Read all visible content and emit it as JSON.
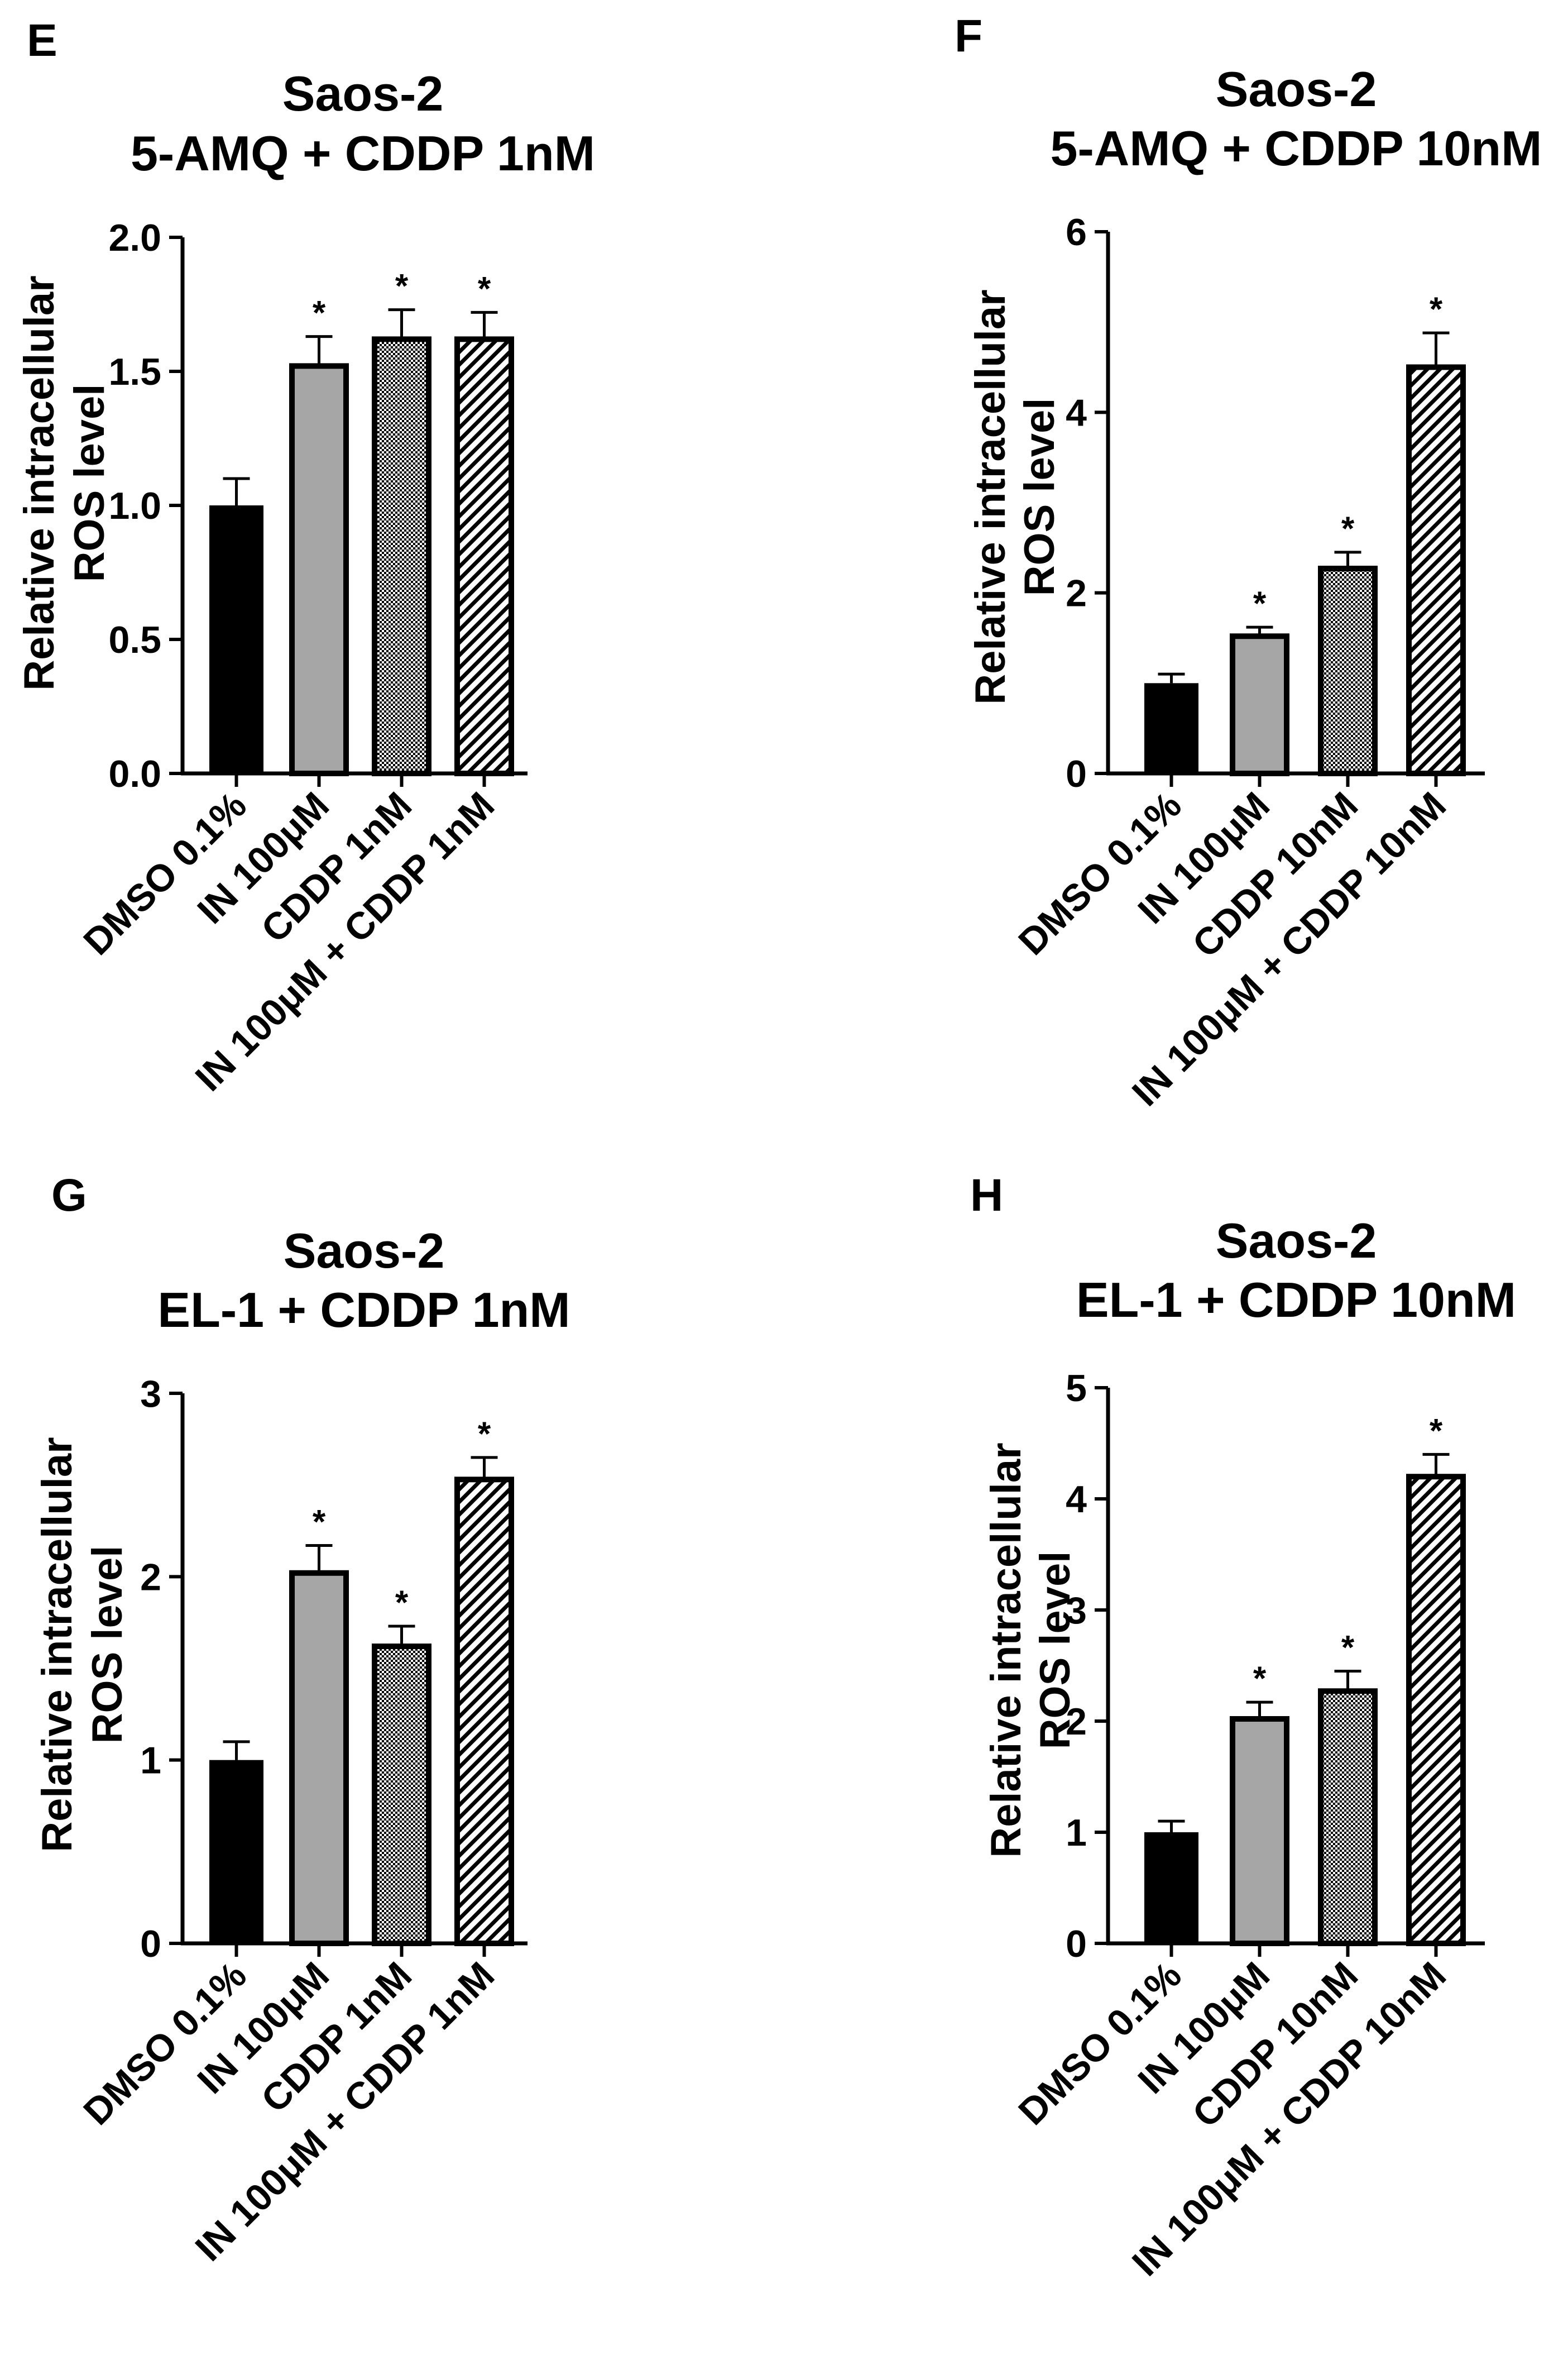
{
  "colors": {
    "dmso": "#000000",
    "in": "#a6a6a6",
    "axis": "#000000"
  },
  "chart_data": [
    {
      "panel": "E",
      "type": "bar",
      "title": [
        "Saos-2",
        "5-AMQ + CDDP 1nM"
      ],
      "ylabel": [
        "Relative intracellular",
        "ROS level"
      ],
      "xlabel": "",
      "ylim": [
        0,
        2.0
      ],
      "yticks": [
        0.0,
        0.5,
        1.0,
        1.5,
        2.0
      ],
      "ytick_labels": [
        "0.0",
        "0.5",
        "1.0",
        "1.5",
        "2.0"
      ],
      "categories": [
        "DMSO 0.1%",
        "IN 100μM",
        "CDDP 1nM",
        "IN 100μM + CDDP 1nM"
      ],
      "values": [
        1.0,
        1.52,
        1.62,
        1.62
      ],
      "errors": [
        0.1,
        0.11,
        0.11,
        0.1
      ],
      "significance": [
        "",
        "*",
        "*",
        "*"
      ],
      "fills": [
        "solid-black",
        "solid-gray",
        "checker",
        "diagonal"
      ]
    },
    {
      "panel": "F",
      "type": "bar",
      "title": [
        "Saos-2",
        "5-AMQ + CDDP 10nM"
      ],
      "ylabel": [
        "Relative intracellular",
        "ROS level"
      ],
      "xlabel": "",
      "ylim": [
        0,
        6
      ],
      "yticks": [
        0,
        2,
        4,
        6
      ],
      "ytick_labels": [
        "0",
        "2",
        "4",
        "6"
      ],
      "categories": [
        "DMSO 0.1%",
        "IN 100μM",
        "CDDP 10nM",
        "IN 100μM + CDDP 10nM"
      ],
      "values": [
        1.0,
        1.52,
        2.27,
        4.5
      ],
      "errors": [
        0.1,
        0.1,
        0.18,
        0.38
      ],
      "significance": [
        "",
        "*",
        "*",
        "*"
      ],
      "fills": [
        "solid-black",
        "solid-gray",
        "checker",
        "diagonal"
      ]
    },
    {
      "panel": "G",
      "type": "bar",
      "title": [
        "Saos-2",
        "EL-1 + CDDP 1nM"
      ],
      "ylabel": [
        "Relative intracellular",
        "ROS level"
      ],
      "xlabel": "",
      "ylim": [
        0,
        3
      ],
      "yticks": [
        0,
        1,
        2,
        3
      ],
      "ytick_labels": [
        "0",
        "1",
        "2",
        "3"
      ],
      "categories": [
        "DMSO 0.1%",
        "IN 100μM",
        "CDDP 1nM",
        "IN 100μM + CDDP 1nM"
      ],
      "values": [
        1.0,
        2.02,
        1.62,
        2.53
      ],
      "errors": [
        0.1,
        0.15,
        0.11,
        0.12
      ],
      "significance": [
        "",
        "*",
        "*",
        "*"
      ],
      "fills": [
        "solid-black",
        "solid-gray",
        "checker",
        "diagonal"
      ]
    },
    {
      "panel": "H",
      "type": "bar",
      "title": [
        "Saos-2",
        "EL-1 + CDDP 10nM"
      ],
      "ylabel": [
        "Relative intracellular",
        "ROS level"
      ],
      "xlabel": "",
      "ylim": [
        0,
        5
      ],
      "yticks": [
        0,
        1,
        2,
        3,
        4,
        5
      ],
      "ytick_labels": [
        "0",
        "1",
        "2",
        "3",
        "4",
        "5"
      ],
      "categories": [
        "DMSO 0.1%",
        "IN 100μM",
        "CDDP 10nM",
        "IN 100μM + CDDP 10nM"
      ],
      "values": [
        1.0,
        2.02,
        2.27,
        4.2
      ],
      "errors": [
        0.1,
        0.15,
        0.18,
        0.2
      ],
      "significance": [
        "",
        "*",
        "*",
        "*"
      ],
      "fills": [
        "solid-black",
        "solid-gray",
        "checker",
        "diagonal"
      ]
    }
  ]
}
